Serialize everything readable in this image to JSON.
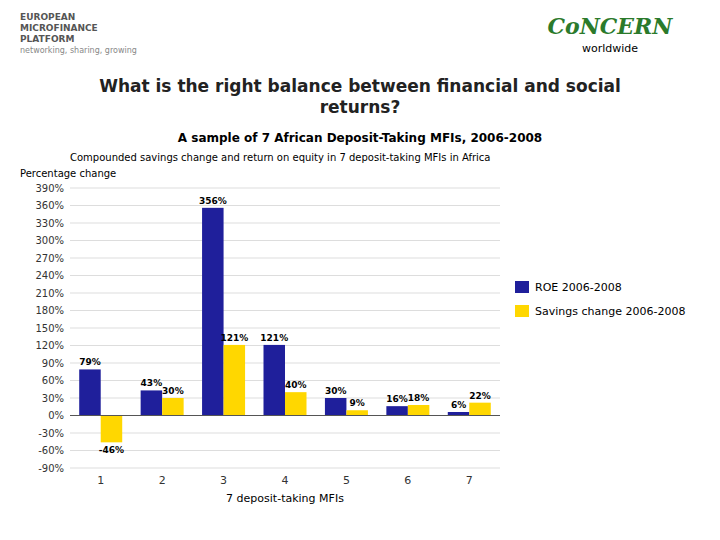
{
  "chart_data": {
    "type": "bar",
    "title": "What is the right balance between financial and social\nreturns?",
    "subtitle": "A sample of 7 African Deposit-Taking MFIs, 2006-2008",
    "annotations": [
      "Compounded savings change and return on equity in 7 deposit-taking MFIs in Africa",
      "EUROPEAN",
      "MICROFINANCE",
      "PLATFORM",
      "networking, sharing, growing",
      "CoNCERN",
      "worldwide"
    ],
    "y_label": "Percentage change",
    "x_label": "7 deposit-taking MFIs",
    "categories": [
      1,
      2,
      3,
      4,
      5,
      6,
      7
    ],
    "series": [
      {
        "name": "ROE 2006-2008",
        "color": "#1F1F9B",
        "values": [
          79,
          43,
          356,
          121,
          30,
          16,
          6
        ],
        "value_labels": [
          "79%",
          "43%",
          "356%",
          "121%",
          "30%",
          "16%",
          "6%"
        ]
      },
      {
        "name": "Savings change 2006-2008",
        "color": "#FFD700",
        "values": [
          -46,
          30,
          121,
          40,
          9,
          18,
          22
        ],
        "value_labels": [
          "-46%",
          "30%",
          "121%",
          "40%",
          "9%",
          "18%",
          "22%"
        ]
      }
    ],
    "ylim": [
      -90,
      390
    ],
    "yticks": [
      {
        "value": -90,
        "label": "-90%"
      },
      {
        "value": -60,
        "label": "-60%"
      },
      {
        "value": -30,
        "label": "-30%"
      },
      {
        "value": 0,
        "label": "0%"
      },
      {
        "value": 30,
        "label": "30%"
      },
      {
        "value": 60,
        "label": "60%"
      },
      {
        "value": 90,
        "label": "90%"
      },
      {
        "value": 120,
        "label": "120%"
      },
      {
        "value": 150,
        "label": "150%"
      },
      {
        "value": 180,
        "label": "180%"
      },
      {
        "value": 210,
        "label": "210%"
      },
      {
        "value": 240,
        "label": "240%"
      },
      {
        "value": 270,
        "label": "270%"
      },
      {
        "value": 300,
        "label": "300%"
      },
      {
        "value": 330,
        "label": "330%"
      },
      {
        "value": 360,
        "label": "360%"
      },
      {
        "value": 390,
        "label": "390%"
      }
    ],
    "grid": true,
    "data_labels": true,
    "legend": "right"
  }
}
